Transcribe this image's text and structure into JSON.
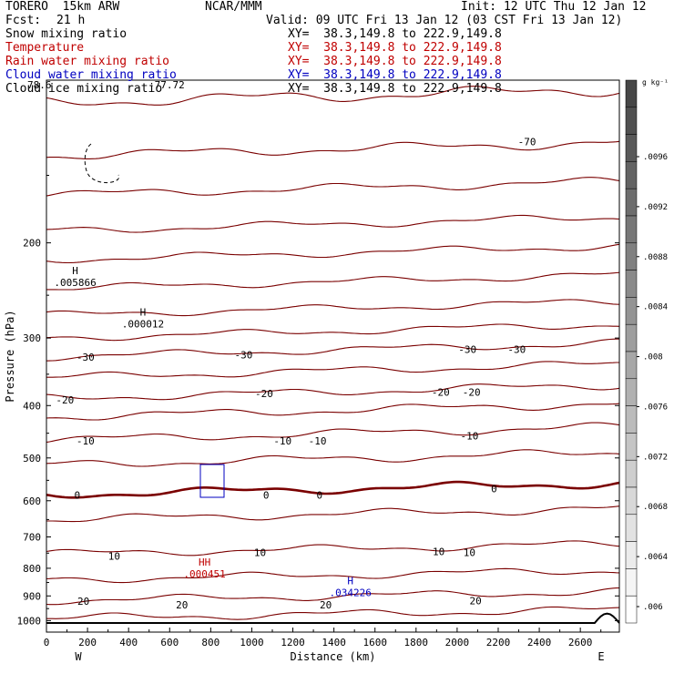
{
  "header": {
    "model": "TORERO  15km ARW",
    "org": "NCAR/MMM",
    "init": "Init: 12 UTC Thu 12 Jan 12",
    "fcst_label": "Fcst:",
    "fcst_value": "21 h",
    "valid": "Valid: 09 UTC Fri 13 Jan 12 (03 CST Fri 13 Jan 12)"
  },
  "fields": [
    {
      "name": "Snow mixing ratio",
      "xy": "XY=  38.3,149.8 to 222.9,149.8",
      "color": "#000000"
    },
    {
      "name": "Temperature",
      "xy": "XY=  38.3,149.8 to 222.9,149.8",
      "color": "#c00000"
    },
    {
      "name": "Rain water mixing ratio",
      "xy": "XY=  38.3,149.8 to 222.9,149.8",
      "color": "#c00000"
    },
    {
      "name": "Cloud water mixing ratio",
      "xy": "XY=  38.3,149.8 to 222.9,149.8",
      "color": "#0000c0"
    },
    {
      "name": "Cloud ice mixing ratio",
      "xy": "XY=  38.3,149.8 to 222.9,149.8",
      "color": "#000000"
    }
  ],
  "overlap_text": {
    "left": "78.6",
    "right": "-77.72"
  },
  "chart_data": {
    "type": "line",
    "xlabel": "Distance (km)",
    "ylabel": "Pressure (hPa)",
    "xlim": [
      0,
      2790
    ],
    "ylim": [
      1050,
      100
    ],
    "x_ticks": [
      "0",
      "200",
      "400",
      "600",
      "800",
      "1000",
      "1200",
      "1400",
      "1600",
      "1800",
      "2000",
      "2200",
      "2400",
      "2600"
    ],
    "y_ticks": [
      "200",
      "300",
      "400",
      "500",
      "600",
      "700",
      "800",
      "900",
      "1000"
    ],
    "x_end_labels": {
      "left": "W",
      "right": "E"
    },
    "isotherms_degC": [
      -70,
      -65,
      -60,
      -55,
      -50,
      -45,
      -40,
      -35,
      -30,
      -25,
      -20,
      -15,
      -10,
      -5,
      0,
      5,
      10,
      15,
      20,
      25
    ],
    "isotherm_labels": [
      {
        "text": "-70",
        "x": 2340,
        "p": 130
      },
      {
        "text": "-30",
        "x": 190,
        "p": 325
      },
      {
        "text": "-30",
        "x": 960,
        "p": 322
      },
      {
        "text": "-30",
        "x": 2050,
        "p": 315
      },
      {
        "text": "-30",
        "x": 2290,
        "p": 315
      },
      {
        "text": "-20",
        "x": 90,
        "p": 390
      },
      {
        "text": "-20",
        "x": 1060,
        "p": 380
      },
      {
        "text": "-20",
        "x": 1920,
        "p": 378
      },
      {
        "text": "-20",
        "x": 2070,
        "p": 378
      },
      {
        "text": "-10",
        "x": 190,
        "p": 465
      },
      {
        "text": "-10",
        "x": 1150,
        "p": 465
      },
      {
        "text": "-10",
        "x": 1320,
        "p": 465
      },
      {
        "text": "-10",
        "x": 2060,
        "p": 455
      },
      {
        "text": "0",
        "x": 150,
        "p": 585
      },
      {
        "text": "0",
        "x": 1070,
        "p": 585
      },
      {
        "text": "0",
        "x": 1330,
        "p": 585
      },
      {
        "text": "0",
        "x": 2180,
        "p": 570
      },
      {
        "text": "10",
        "x": 330,
        "p": 760
      },
      {
        "text": "10",
        "x": 1040,
        "p": 748
      },
      {
        "text": "10",
        "x": 1910,
        "p": 745
      },
      {
        "text": "10",
        "x": 2060,
        "p": 748
      },
      {
        "text": "20",
        "x": 180,
        "p": 920
      },
      {
        "text": "20",
        "x": 660,
        "p": 935
      },
      {
        "text": "20",
        "x": 1360,
        "p": 935
      },
      {
        "text": "20",
        "x": 2090,
        "p": 918
      }
    ],
    "extrema": [
      {
        "text": "H",
        "value": ".005866",
        "x": 140,
        "p": 235,
        "field": "Snow mixing ratio",
        "color": "#000000"
      },
      {
        "text": "H",
        "value": ".000012",
        "x": 470,
        "p": 280,
        "field": "Cloud ice mixing ratio",
        "color": "#000000"
      },
      {
        "text": "HH",
        "value": ".000451",
        "x": 770,
        "p": 812,
        "field": "Rain water mixing ratio",
        "color": "#c00000"
      },
      {
        "text": "H",
        "value": ".034226",
        "x": 1480,
        "p": 880,
        "field": "Cloud water mixing ratio",
        "color": "#0000c0"
      }
    ],
    "colorbar": {
      "unit": "g kg⁻¹",
      "tick_labels": [
        ".0096",
        ".0092",
        ".0088",
        ".0084",
        ".008",
        ".0076",
        ".0072",
        ".0068",
        ".0064",
        ".006"
      ]
    }
  }
}
